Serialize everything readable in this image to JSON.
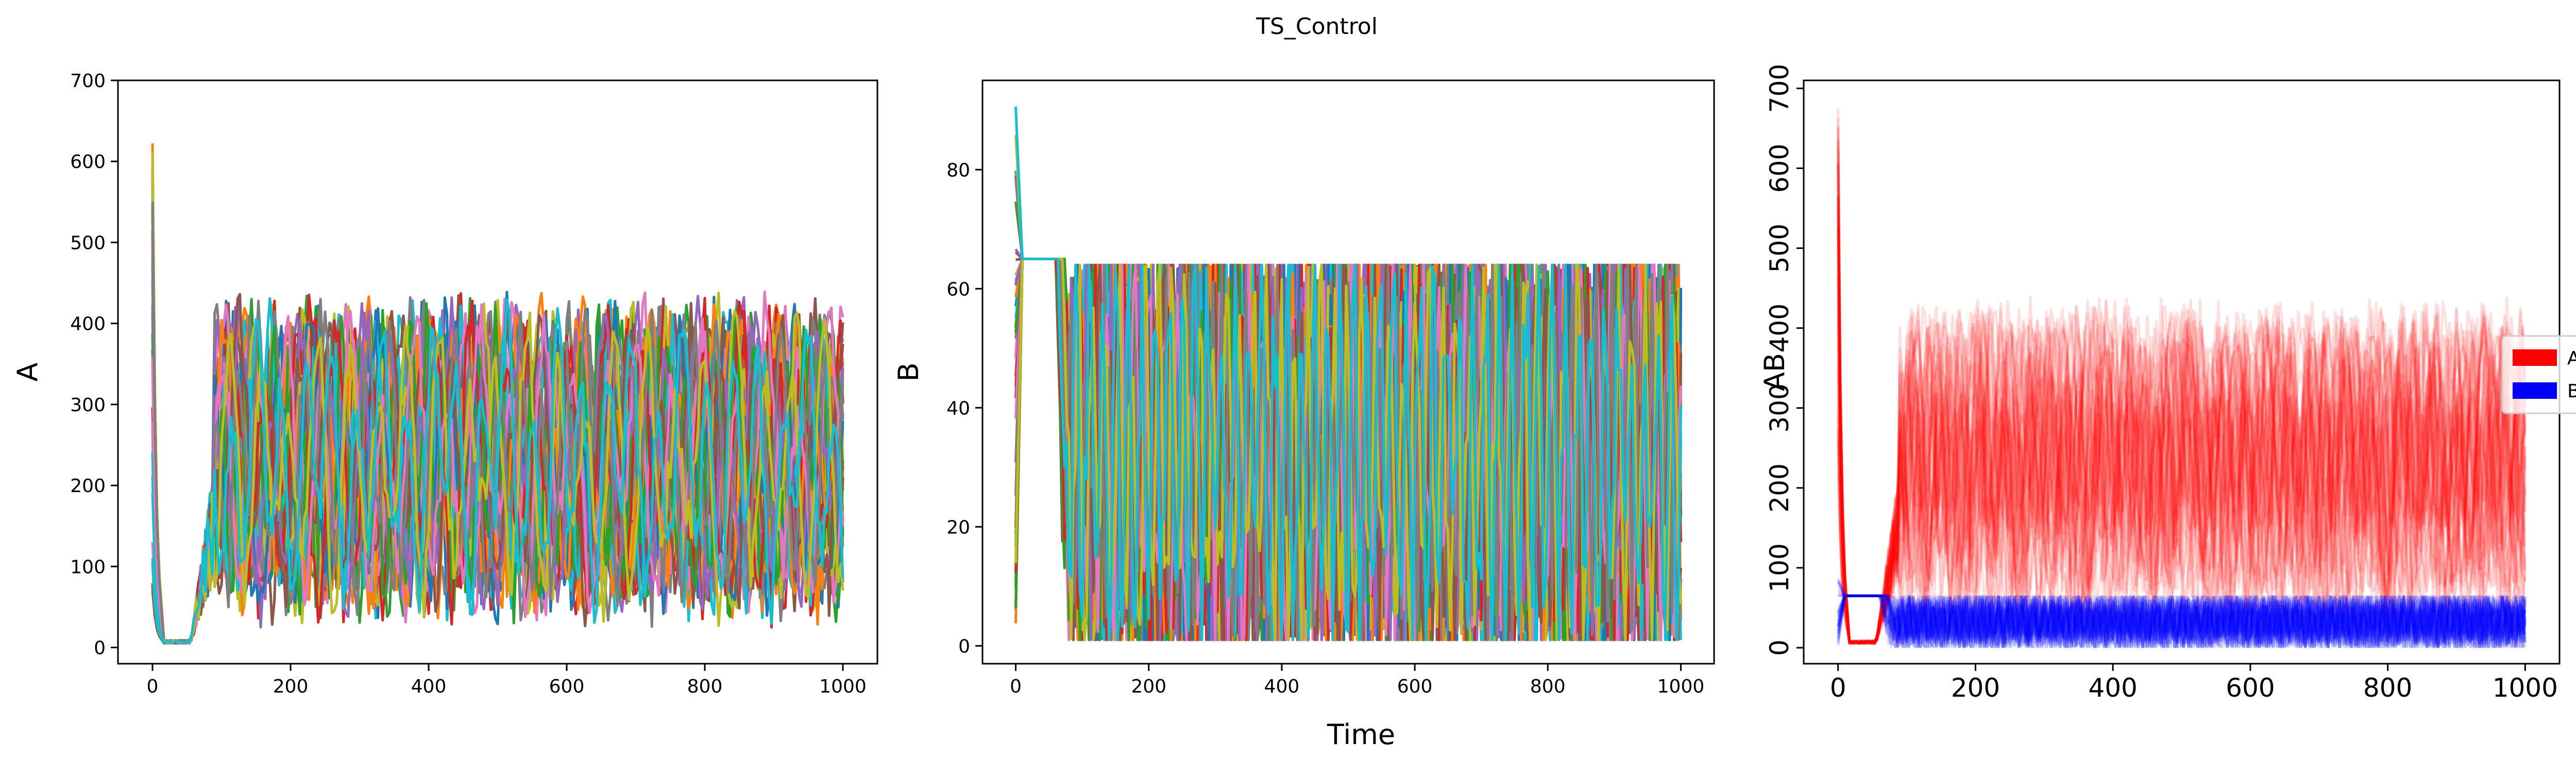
{
  "figure": {
    "suptitle": "TS_Control",
    "shared_xlabel": "Time"
  },
  "chart_data": [
    {
      "type": "line",
      "ylabel": "A",
      "xlabel": "",
      "xlim": [
        -50,
        1050
      ],
      "ylim": [
        -20,
        700
      ],
      "xticks": [
        0,
        200,
        400,
        600,
        800,
        1000
      ],
      "yticks": [
        0,
        100,
        200,
        300,
        400,
        500,
        600,
        700
      ],
      "series_count": 40,
      "series_description": "40 colored trajectories, each a variable A over time",
      "initial_range": [
        60,
        670
      ],
      "dip_min": 5,
      "dip_end_time": 55,
      "oscillation_range": [
        25,
        440
      ],
      "colors": [
        "#1f77b4",
        "#ff7f0e",
        "#2ca02c",
        "#d62728",
        "#9467bd",
        "#8c564b",
        "#e377c2",
        "#7f7f7f",
        "#bcbd22",
        "#17becf"
      ],
      "legend": false
    },
    {
      "type": "line",
      "ylabel": "B",
      "xlabel": "Time",
      "xlim": [
        -50,
        1050
      ],
      "ylim": [
        -3,
        95
      ],
      "xticks": [
        0,
        200,
        400,
        600,
        800,
        1000
      ],
      "yticks": [
        0,
        20,
        40,
        60,
        80
      ],
      "series_count": 40,
      "series_description": "40 colored trajectories, each a variable B over time",
      "initial_range": [
        1,
        92
      ],
      "plateau_value": 65,
      "plateau_end_time": 60,
      "oscillation_range": [
        1,
        64
      ],
      "colors": [
        "#1f77b4",
        "#ff7f0e",
        "#2ca02c",
        "#d62728",
        "#9467bd",
        "#8c564b",
        "#e377c2",
        "#7f7f7f",
        "#bcbd22",
        "#17becf"
      ],
      "legend": false
    },
    {
      "type": "line",
      "ylabel": "AB",
      "xlabel": "",
      "xlim": [
        -50,
        1050
      ],
      "ylim": [
        -20,
        710
      ],
      "xticks": [
        0,
        200,
        400,
        600,
        800,
        1000
      ],
      "yticks": [
        0,
        100,
        200,
        300,
        400,
        500,
        600,
        700
      ],
      "ytick_rotation": 90,
      "series": [
        {
          "name": "A",
          "color": "#ff0000",
          "alpha": 0.12,
          "count": 40,
          "oscillation_range": [
            25,
            440
          ]
        },
        {
          "name": "B",
          "color": "#0000ff",
          "alpha": 0.12,
          "count": 40,
          "plateau_value": 65,
          "oscillation_range": [
            1,
            64
          ]
        }
      ],
      "legend": {
        "position": "right",
        "entries": [
          "A",
          "B"
        ]
      }
    }
  ]
}
